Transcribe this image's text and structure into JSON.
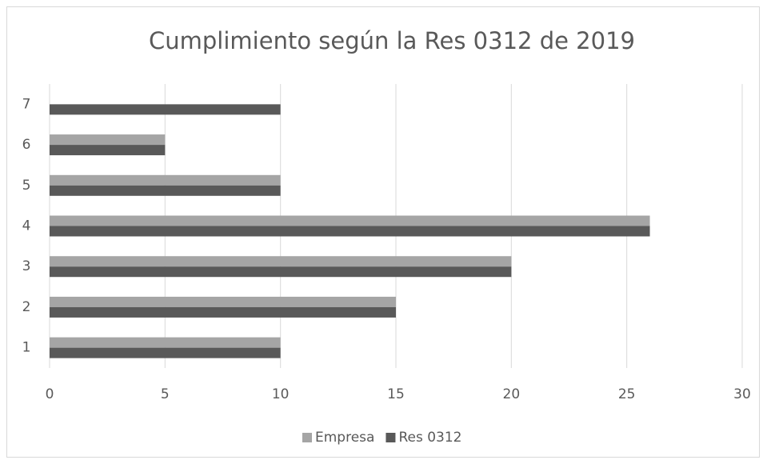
{
  "chart_data": {
    "type": "barh",
    "title": "Cumplimiento según la Res 0312 de 2019",
    "categories": [
      "1",
      "2",
      "3",
      "4",
      "5",
      "6",
      "7"
    ],
    "series": [
      {
        "name": "Empresa",
        "color": "#a5a5a5",
        "values": [
          10,
          15,
          20,
          26,
          10,
          5,
          0
        ]
      },
      {
        "name": "Res 0312",
        "color": "#595959",
        "values": [
          10,
          15,
          20,
          26,
          10,
          5,
          10
        ]
      }
    ],
    "xlim": [
      0,
      30
    ],
    "xticks": [
      0,
      5,
      10,
      15,
      20,
      25,
      30
    ],
    "grid": true,
    "legend": "bottom"
  }
}
